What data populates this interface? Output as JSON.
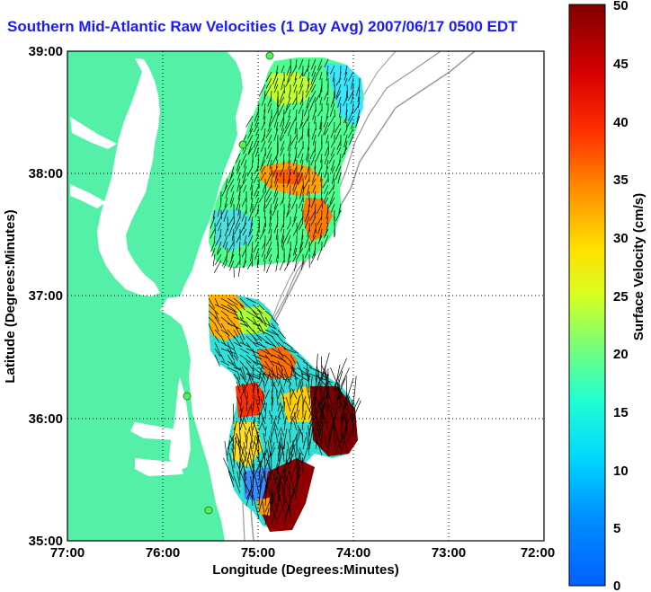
{
  "title": "Southern Mid-Atlantic Raw Velocities (1 Day Avg) 2007/06/17 0500 EDT",
  "axes": {
    "xlabel": "Longitude (Degrees:Minutes)",
    "ylabel": "Latitude (Degrees:Minutes)",
    "xticks": [
      "77:00",
      "76:00",
      "75:00",
      "74:00",
      "73:00",
      "72:00"
    ],
    "yticks": [
      "39:00",
      "38:00",
      "37:00",
      "36:00",
      "35:00"
    ]
  },
  "colorbar": {
    "label": "Surface Velocity (cm/s)",
    "ticks": [
      "50",
      "45",
      "40",
      "35",
      "30",
      "25",
      "20",
      "15",
      "10",
      "5",
      "0"
    ],
    "min": 0,
    "max": 50
  },
  "colors": {
    "land": "#55f0a8",
    "title": "#1a1aff",
    "background": "#ffffff"
  }
}
